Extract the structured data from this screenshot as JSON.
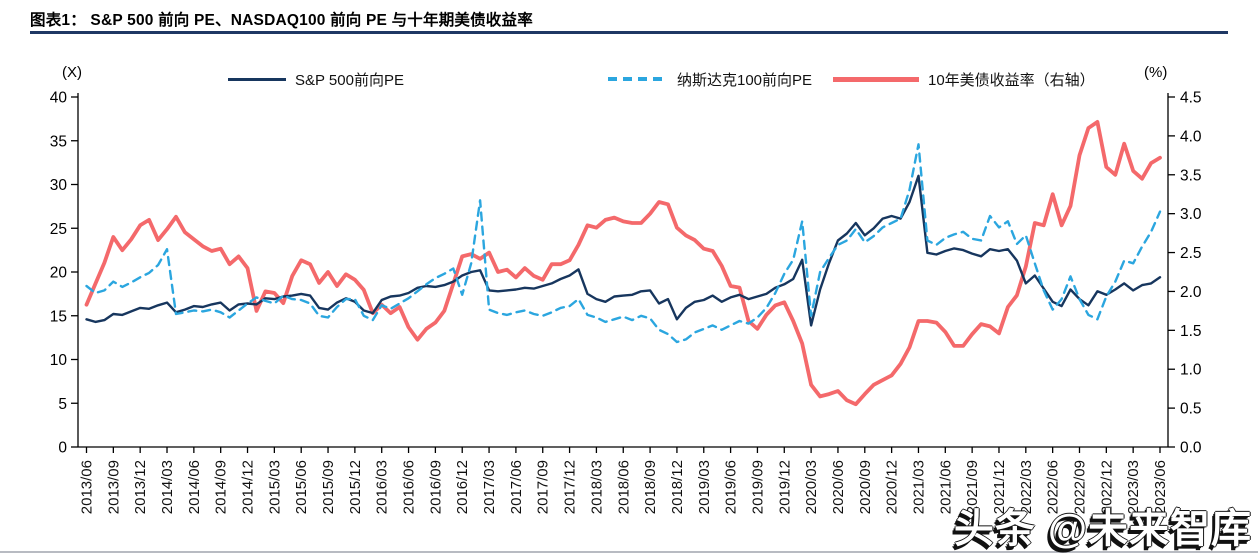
{
  "title": "图表1： S&P 500 前向 PE、NASDAQ100 前向 PE 与十年期美债收益率",
  "watermark": "头条 @未来智库",
  "legend": [
    {
      "label": "S&P 500前向PE"
    },
    {
      "label": "纳斯达克100前向PE"
    },
    {
      "label": "10年美债收益率（右轴）"
    }
  ],
  "chart_data": {
    "type": "line",
    "title": "S&P 500 前向 PE、NASDAQ100 前向 PE 与十年期美债收益率",
    "x_start": "2013/06",
    "x_step_months": 1,
    "x_tick_labels": [
      "2013/06",
      "2013/09",
      "2013/12",
      "2014/03",
      "2014/06",
      "2014/09",
      "2014/12",
      "2015/03",
      "2015/06",
      "2015/09",
      "2015/12",
      "2016/03",
      "2016/06",
      "2016/09",
      "2016/12",
      "2017/03",
      "2017/06",
      "2017/09",
      "2017/12",
      "2018/03",
      "2018/06",
      "2018/09",
      "2018/12",
      "2019/03",
      "2019/06",
      "2019/09",
      "2019/12",
      "2020/03",
      "2020/06",
      "2020/09",
      "2020/12",
      "2021/03",
      "2021/06",
      "2021/09",
      "2021/12",
      "2022/03",
      "2022/06",
      "2022/09",
      "2022/12",
      "2023/03",
      "2023/06"
    ],
    "left_axis": {
      "unit": "(X)",
      "min": 0,
      "max": 40,
      "tick_labels": [
        "0",
        "5",
        "10",
        "15",
        "20",
        "25",
        "30",
        "35",
        "40"
      ],
      "ticks": [
        0,
        5,
        10,
        15,
        20,
        25,
        30,
        35,
        40
      ]
    },
    "right_axis": {
      "unit": "(%)",
      "min": 0,
      "max": 4.5,
      "tick_labels": [
        "0.0",
        "0.5",
        "1.0",
        "1.5",
        "2.0",
        "2.5",
        "3.0",
        "3.5",
        "4.0",
        "4.5"
      ],
      "ticks": [
        0,
        0.5,
        1,
        1.5,
        2,
        2.5,
        3,
        3.5,
        4,
        4.5
      ]
    },
    "grid": false,
    "legend_position": "top",
    "series": [
      {
        "name": "S&P 500前向PE",
        "axis": "left",
        "color": "#17365E",
        "style": "solid",
        "values": [
          14.6,
          14.3,
          14.5,
          15.2,
          15.1,
          15.5,
          15.9,
          15.8,
          16.2,
          16.5,
          15.4,
          15.7,
          16.1,
          16.0,
          16.3,
          16.5,
          15.6,
          16.3,
          16.4,
          16.3,
          17.0,
          16.9,
          17.2,
          17.3,
          17.5,
          17.3,
          15.9,
          15.7,
          16.5,
          17.0,
          16.6,
          15.6,
          15.3,
          16.8,
          17.2,
          17.3,
          17.6,
          18.2,
          18.4,
          18.3,
          18.5,
          18.9,
          19.6,
          20.0,
          20.2,
          17.9,
          17.8,
          17.9,
          18.0,
          18.2,
          18.1,
          18.4,
          18.7,
          19.2,
          19.6,
          20.3,
          17.5,
          16.9,
          16.6,
          17.2,
          17.3,
          17.4,
          17.8,
          17.9,
          16.4,
          16.9,
          14.6,
          15.9,
          16.6,
          16.8,
          17.3,
          16.6,
          17.1,
          17.4,
          16.9,
          17.2,
          17.5,
          18.2,
          18.6,
          19.2,
          21.4,
          13.9,
          18.0,
          21.0,
          23.6,
          24.4,
          25.6,
          24.2,
          25.0,
          26.1,
          26.4,
          26.1,
          28.0,
          31.0,
          22.2,
          22.0,
          22.4,
          22.7,
          22.5,
          22.1,
          21.8,
          22.6,
          22.4,
          22.6,
          21.3,
          18.7,
          19.6,
          18.1,
          16.6,
          16.1,
          18.0,
          16.9,
          16.2,
          17.8,
          17.4,
          18.0,
          18.7,
          17.9,
          18.5,
          18.7,
          19.4
        ]
      },
      {
        "name": "纳斯达克100前向PE",
        "axis": "left",
        "color": "#2BA6DF",
        "style": "dashed",
        "values": [
          18.4,
          17.6,
          17.9,
          18.9,
          18.3,
          18.8,
          19.4,
          19.9,
          20.8,
          22.6,
          15.2,
          15.4,
          15.6,
          15.5,
          15.7,
          15.4,
          14.8,
          15.6,
          16.4,
          17.1,
          16.7,
          16.4,
          17.3,
          16.9,
          16.8,
          16.4,
          15.0,
          14.8,
          16.0,
          16.9,
          16.9,
          15.0,
          14.5,
          16.2,
          15.8,
          16.4,
          17.0,
          17.8,
          18.6,
          19.3,
          19.8,
          20.4,
          17.4,
          21.0,
          28.2,
          15.7,
          15.3,
          15.1,
          15.4,
          15.6,
          15.2,
          15.0,
          15.4,
          15.9,
          16.1,
          16.9,
          15.1,
          14.8,
          14.3,
          14.6,
          14.9,
          14.5,
          15.0,
          14.7,
          13.4,
          12.9,
          12.0,
          12.3,
          13.1,
          13.5,
          13.9,
          13.4,
          13.9,
          14.4,
          14.1,
          14.8,
          15.9,
          17.6,
          19.8,
          21.4,
          25.8,
          15.0,
          20.0,
          21.6,
          23.1,
          23.6,
          24.9,
          23.4,
          24.1,
          25.1,
          25.6,
          26.1,
          29.4,
          34.6,
          23.6,
          23.1,
          23.9,
          24.3,
          24.6,
          23.8,
          23.6,
          26.4,
          25.1,
          25.8,
          23.2,
          24.2,
          21.0,
          17.9,
          15.7,
          16.9,
          19.5,
          16.9,
          15.1,
          14.6,
          17.2,
          18.9,
          21.3,
          21.0,
          22.9,
          24.6,
          26.9
        ]
      },
      {
        "name": "10年美债收益率（右轴）",
        "axis": "right",
        "color": "#F4696B",
        "style": "solid-thick",
        "values": [
          1.83,
          2.1,
          2.37,
          2.7,
          2.53,
          2.67,
          2.85,
          2.92,
          2.66,
          2.8,
          2.96,
          2.76,
          2.67,
          2.58,
          2.52,
          2.55,
          2.35,
          2.45,
          2.3,
          1.75,
          2.0,
          1.98,
          1.85,
          2.2,
          2.4,
          2.35,
          2.11,
          2.25,
          2.07,
          2.22,
          2.15,
          2.02,
          1.72,
          1.83,
          1.72,
          1.8,
          1.54,
          1.38,
          1.52,
          1.6,
          1.75,
          2.1,
          2.45,
          2.48,
          2.42,
          2.5,
          2.25,
          2.28,
          2.18,
          2.3,
          2.2,
          2.15,
          2.35,
          2.35,
          2.4,
          2.6,
          2.85,
          2.82,
          2.92,
          2.95,
          2.9,
          2.88,
          2.88,
          3.0,
          3.15,
          3.12,
          2.82,
          2.72,
          2.66,
          2.55,
          2.52,
          2.33,
          2.07,
          2.05,
          1.62,
          1.52,
          1.7,
          1.82,
          1.86,
          1.62,
          1.33,
          0.8,
          0.65,
          0.68,
          0.72,
          0.6,
          0.55,
          0.68,
          0.8,
          0.86,
          0.92,
          1.07,
          1.28,
          1.62,
          1.62,
          1.6,
          1.48,
          1.3,
          1.3,
          1.45,
          1.58,
          1.55,
          1.46,
          1.8,
          1.95,
          2.32,
          2.88,
          2.85,
          3.25,
          2.85,
          3.1,
          3.75,
          4.1,
          4.18,
          3.6,
          3.5,
          3.9,
          3.55,
          3.45,
          3.65,
          3.72
        ]
      }
    ]
  }
}
